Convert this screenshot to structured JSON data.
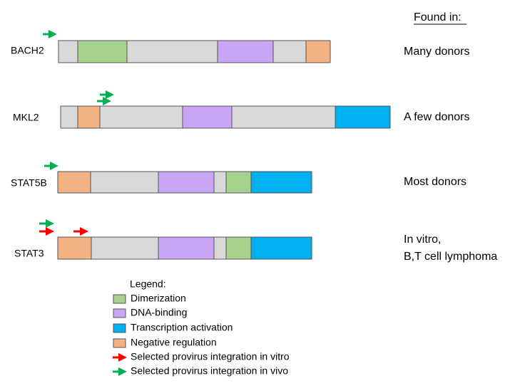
{
  "heading": "Found in:",
  "genes": [
    {
      "name": "BACH2",
      "found_in": [
        "Many donors"
      ]
    },
    {
      "name": "MKL2",
      "found_in": [
        "A few donors"
      ]
    },
    {
      "name": "STAT5B",
      "found_in": [
        "Most donors"
      ]
    },
    {
      "name": "STAT3",
      "found_in": [
        "In vitro,",
        "B,T cell lymphoma"
      ]
    }
  ],
  "legend": {
    "title": "Legend:",
    "items": [
      "Dimerization",
      "DNA-binding",
      "Transcription activation",
      "Negative regulation",
      "Selected provirus integration in vitro",
      "Selected provirus integration in vivo"
    ]
  }
}
